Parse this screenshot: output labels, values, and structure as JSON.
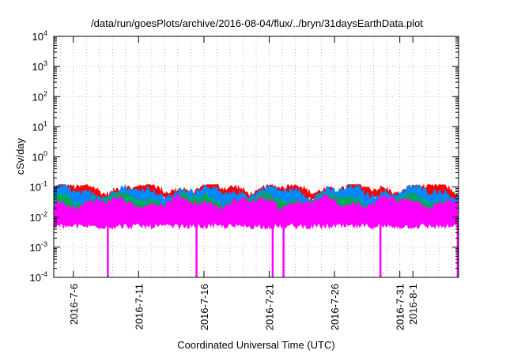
{
  "chart_data": {
    "type": "line",
    "title": "/data/run/goesPlots/archive/2016-08-04/flux/../bryn/31daysEarthData.plot",
    "xlabel": "Coordinated Universal Time (UTC)",
    "ylabel": "cSv/day",
    "yscale": "log",
    "ylim": [
      0.0001,
      10000
    ],
    "xlim": [
      "2016-07-04T12:00",
      "2016-08-04T12:00"
    ],
    "grid": true,
    "x_ticks": [
      "2016-7-6",
      "2016-7-11",
      "2016-7-16",
      "2016-7-21",
      "2016-7-26",
      "2016-7-31",
      "2016-8-1"
    ],
    "x_tick_dates": [
      "2016-07-06",
      "2016-07-11",
      "2016-07-16",
      "2016-07-21",
      "2016-07-26",
      "2016-07-31",
      "2016-08-01"
    ],
    "y_ticks": [
      {
        "value": 0.0001,
        "base": "10",
        "exp": "-4"
      },
      {
        "value": 0.001,
        "base": "10",
        "exp": "-3"
      },
      {
        "value": 0.01,
        "base": "10",
        "exp": "-2"
      },
      {
        "value": 0.1,
        "base": "10",
        "exp": "-1"
      },
      {
        "value": 1,
        "base": "10",
        "exp": "0"
      },
      {
        "value": 10,
        "base": "10",
        "exp": "1"
      },
      {
        "value": 100,
        "base": "10",
        "exp": "2"
      },
      {
        "value": 1000,
        "base": "10",
        "exp": "3"
      },
      {
        "value": 10000,
        "base": "10",
        "exp": "4"
      }
    ],
    "series": [
      {
        "color": "#ff0000",
        "typical_low": 0.04,
        "typical_high": 0.09
      },
      {
        "color": "#0088ff",
        "typical_low": 0.02,
        "typical_high": 0.07
      },
      {
        "color": "#00aa55",
        "typical_low": 0.012,
        "typical_high": 0.04
      },
      {
        "color": "#ff00ff",
        "typical_low": 0.005,
        "typical_high": 0.03
      }
    ],
    "magenta_dropouts": [
      "2016-07-08T15:00",
      "2016-07-15T10:00",
      "2016-07-21T06:00",
      "2016-07-22T02:00",
      "2016-07-29T12:00",
      "2016-08-04T10:00"
    ]
  }
}
